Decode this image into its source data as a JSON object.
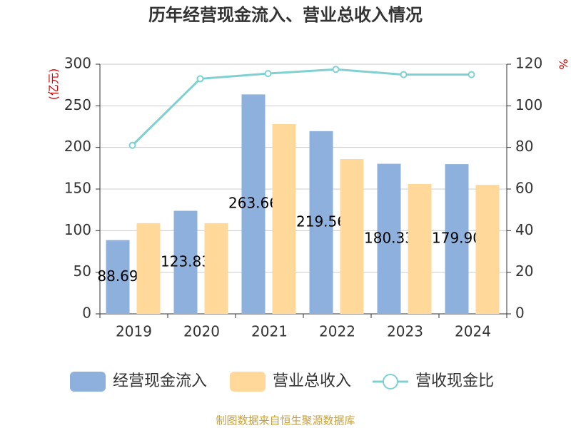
{
  "chart_data": {
    "type": "bar",
    "title": "历年经营现金流入、营业总收入情况",
    "y_label": "(亿元)",
    "y2_label": "%",
    "categories": [
      "2019",
      "2020",
      "2021",
      "2022",
      "2023",
      "2024"
    ],
    "series": [
      {
        "name": "经营现金流入",
        "color": "#8eb0dc",
        "values": [
          88.69,
          123.83,
          263.66,
          219.56,
          180.33,
          179.9
        ],
        "value_labels": [
          "88.69",
          "123.83",
          "263.66",
          "219.56",
          "180.33",
          "179.90"
        ]
      },
      {
        "name": "营业总收入",
        "color": "#ffd89a",
        "values": [
          109,
          109,
          228,
          186,
          156,
          155
        ]
      },
      {
        "name": "营收现金比",
        "color": "#7fd1d1",
        "type": "line",
        "axis": "y2",
        "values": [
          81,
          113,
          115.5,
          117.5,
          115,
          115
        ]
      }
    ],
    "ylim": [
      0,
      300
    ],
    "yticks": [
      0,
      50,
      100,
      150,
      200,
      250,
      300
    ],
    "y2lim": [
      0,
      120
    ],
    "y2ticks": [
      0,
      20,
      40,
      60,
      80,
      100,
      120
    ],
    "grid": true,
    "source": "制图数据来自恒生聚源数据库"
  }
}
